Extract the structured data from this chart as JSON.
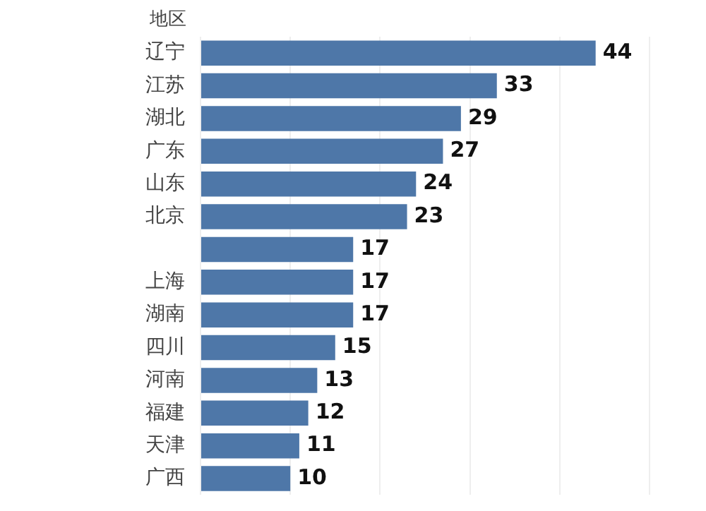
{
  "chart_data": {
    "type": "bar",
    "orientation": "horizontal",
    "ylabel": "地区",
    "categories": [
      "辽宁",
      "江苏",
      "湖北",
      "广东",
      "山东",
      "北京",
      null,
      "上海",
      "湖南",
      "四川",
      "河南",
      "福建",
      "天津",
      "广西"
    ],
    "values": [
      44,
      33,
      29,
      27,
      24,
      23,
      17,
      17,
      17,
      15,
      13,
      12,
      11,
      10
    ],
    "color": "#4e77a8",
    "data_labels": true,
    "grid": "x",
    "tick_labels": "y",
    "xlim": [
      0,
      50
    ],
    "xticks": [
      {
        "value": 0,
        "label": null
      },
      {
        "value": 10,
        "label": null
      },
      {
        "value": 20,
        "label": null
      },
      {
        "value": 30,
        "label": null
      },
      {
        "value": 40,
        "label": null
      },
      {
        "value": 50,
        "label": null
      }
    ]
  }
}
